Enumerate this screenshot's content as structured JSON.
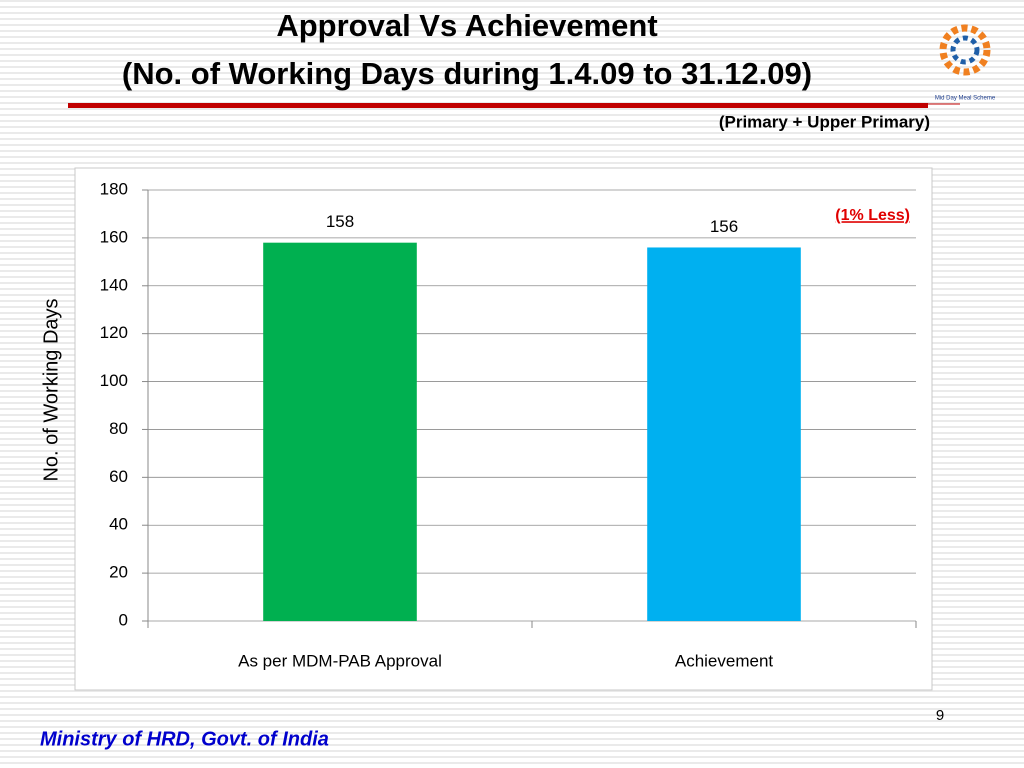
{
  "title": [
    "Approval Vs Achievement",
    "(No. of Working Days during 1.4.09 to 31.12.09)"
  ],
  "logo_text": "Mid Day Meal Scheme",
  "footer": "Ministry of HRD, Govt. of India",
  "page_number": "9",
  "chart_data": {
    "type": "bar",
    "subtitle": "(Primary + Upper Primary)",
    "annotation": "(1% Less)",
    "ylabel": "No. of Working Days",
    "categories": [
      "As per MDM-PAB Approval",
      "Achievement"
    ],
    "values": [
      158,
      156
    ],
    "colors": [
      "#00b050",
      "#00b0f0"
    ],
    "ylim": [
      0,
      180
    ],
    "yticks": [
      0,
      20,
      40,
      60,
      80,
      100,
      120,
      140,
      160,
      180
    ],
    "grid": true
  }
}
